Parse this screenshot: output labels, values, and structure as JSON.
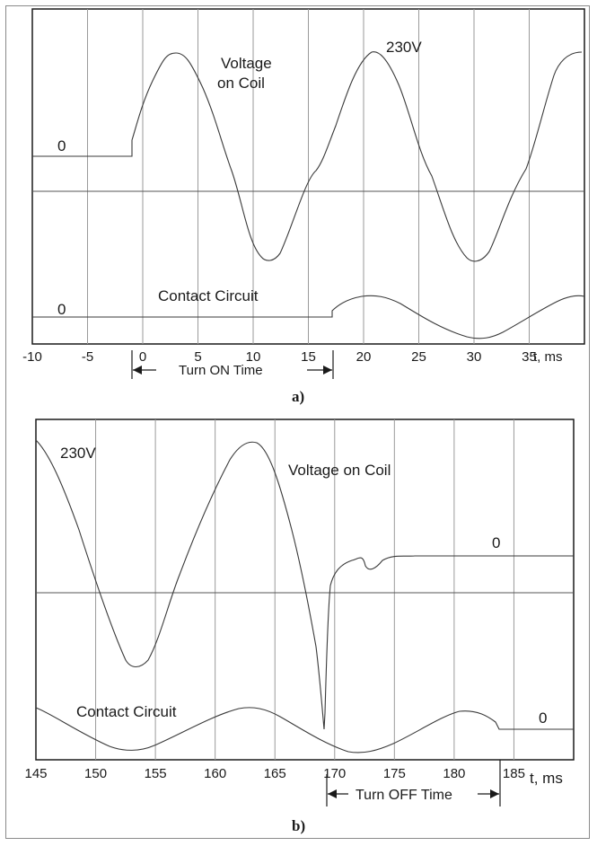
{
  "chart_data": [
    {
      "type": "line",
      "panel_label": "a)",
      "x_axis_label": "t, ms",
      "x_ticks": [
        -10,
        -5,
        0,
        5,
        10,
        15,
        20,
        25,
        30,
        35
      ],
      "xlim": [
        -10,
        40
      ],
      "annotations": {
        "coil_label_line1": "Voltage",
        "coil_label_line2": "on Coil",
        "peak_label": "230V",
        "coil_zero": "0",
        "contact_label": "Contact Circuit",
        "contact_zero": "0",
        "interval_label": "Turn ON Time",
        "interval": [
          0,
          20
        ]
      },
      "series": [
        {
          "name": "Voltage on Coil",
          "description_points": {
            "x": [
              -10,
              0,
              5,
              10,
              15,
              20,
              25,
              30,
              35,
              40
            ],
            "y": [
              0,
              0.1,
              1,
              0.1,
              -0.8,
              0.1,
              1,
              0.1,
              -0.8,
              1
            ]
          }
        },
        {
          "name": "Contact Circuit",
          "description_points": {
            "x": [
              -10,
              20,
              25,
              30,
              35,
              40
            ],
            "y": [
              0,
              0,
              1,
              0,
              -1,
              1
            ]
          }
        }
      ]
    },
    {
      "type": "line",
      "panel_label": "b)",
      "x_axis_label": "t, ms",
      "x_ticks": [
        145,
        150,
        155,
        160,
        165,
        170,
        175,
        180,
        185
      ],
      "xlim": [
        145,
        190
      ],
      "annotations": {
        "peak_label": "230V",
        "coil_label": "Voltage on Coil",
        "coil_zero": "0",
        "contact_label": "Contact Circuit",
        "contact_zero": "0",
        "interval_label": "Turn OFF Time",
        "interval": [
          172,
          188
        ]
      },
      "series": [
        {
          "name": "Voltage on Coil",
          "description_points": {
            "x": [
              145,
              155,
              165,
              172,
              175,
              180,
              190
            ],
            "y": [
              1,
              -0.8,
              1,
              -2.1,
              0,
              0,
              0
            ]
          }
        },
        {
          "name": "Contact Circuit",
          "description_points": {
            "x": [
              145,
              155,
              165,
              175,
              185,
              188,
              190
            ],
            "y": [
              0,
              -1,
              1,
              -1,
              1,
              0,
              0
            ]
          }
        }
      ]
    }
  ]
}
